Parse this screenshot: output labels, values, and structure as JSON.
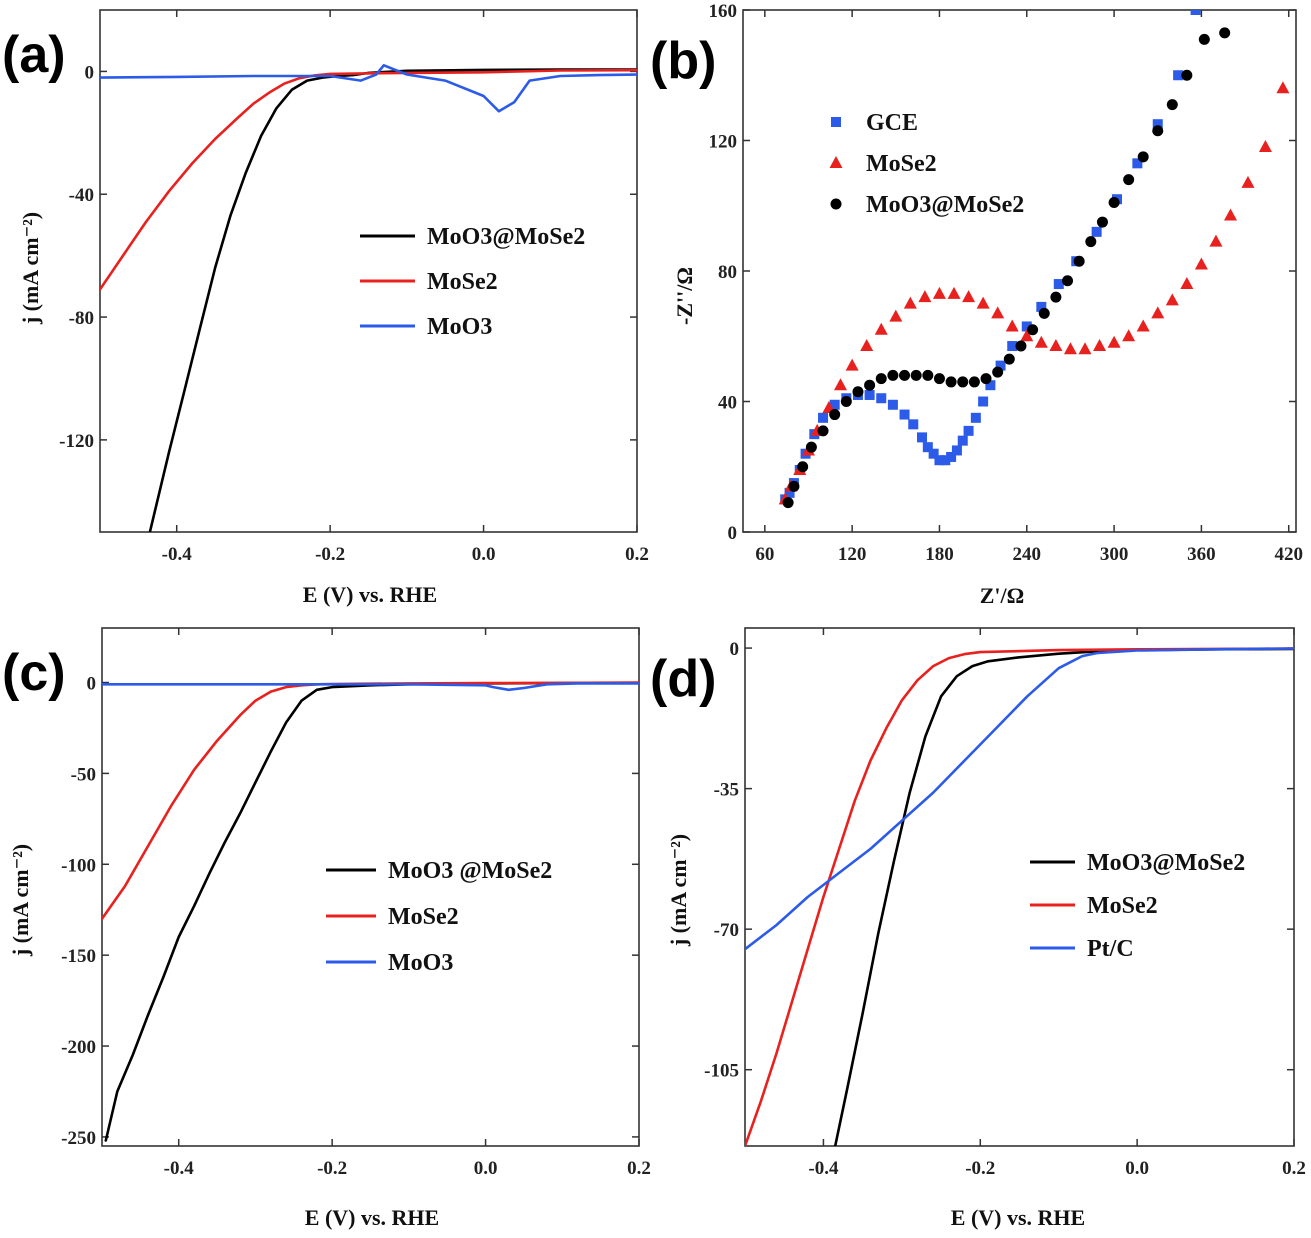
{
  "chart_data": [
    {
      "panel": "(a)",
      "type": "line",
      "xlabel": "E (V) vs. RHE",
      "ylabel": "j (mA cm⁻²)",
      "xlim": [
        -0.5,
        0.2
      ],
      "ylim": [
        -150,
        20
      ],
      "xticks": [
        -0.4,
        -0.2,
        0.0,
        0.2
      ],
      "xtick_labels": [
        "-0.4",
        "-0.2",
        "0.0",
        "0.2"
      ],
      "yticks": [
        0,
        -40,
        -80,
        -120
      ],
      "ytick_labels": [
        "0",
        "-40",
        "-80",
        "-120"
      ],
      "legend_position": "center-right",
      "series": [
        {
          "name": "MoO3@MoSe2",
          "color": "#000000",
          "x": [
            -0.435,
            -0.41,
            -0.39,
            -0.37,
            -0.35,
            -0.33,
            -0.31,
            -0.29,
            -0.27,
            -0.25,
            -0.23,
            -0.21,
            -0.19,
            -0.17,
            -0.15,
            -0.1,
            0.0,
            0.1,
            0.2
          ],
          "y": [
            -150,
            -124,
            -104,
            -84,
            -64,
            -47,
            -33,
            -21,
            -12,
            -6,
            -3,
            -2,
            -1.5,
            -1.2,
            -0.5,
            0.2,
            0.5,
            0.6,
            0.6
          ]
        },
        {
          "name": "MoSe2",
          "color": "#e8211e",
          "x": [
            -0.5,
            -0.47,
            -0.44,
            -0.41,
            -0.38,
            -0.35,
            -0.32,
            -0.3,
            -0.28,
            -0.26,
            -0.24,
            -0.22,
            -0.2,
            -0.1,
            0.0,
            0.1,
            0.2
          ],
          "y": [
            -71,
            -60,
            -49,
            -39,
            -30,
            -22,
            -15,
            -10.5,
            -7,
            -4,
            -2.2,
            -1.3,
            -0.8,
            -0.5,
            -0.3,
            0.3,
            0.4
          ]
        },
        {
          "name": "MoO3",
          "color": "#2b5be8",
          "x": [
            -0.5,
            -0.4,
            -0.3,
            -0.2,
            -0.16,
            -0.14,
            -0.13,
            -0.1,
            -0.05,
            0.0,
            0.02,
            0.04,
            0.06,
            0.1,
            0.15,
            0.2
          ],
          "y": [
            -2,
            -1.8,
            -1.5,
            -1.5,
            -3,
            -1,
            2,
            -1,
            -3,
            -8,
            -13,
            -10,
            -3,
            -1.5,
            -1.2,
            -1
          ]
        }
      ]
    },
    {
      "panel": "(b)",
      "type": "scatter",
      "xlabel": "Z'/Ω",
      "ylabel": "-Z''/Ω",
      "xlim": [
        45,
        425
      ],
      "ylim": [
        0,
        160
      ],
      "xticks": [
        60,
        120,
        180,
        240,
        300,
        360,
        420
      ],
      "xtick_labels": [
        "60",
        "120",
        "180",
        "240",
        "300",
        "360",
        "420"
      ],
      "yticks": [
        0,
        40,
        80,
        120,
        160
      ],
      "ytick_labels": [
        "0",
        "40",
        "80",
        "120",
        "160"
      ],
      "legend_position": "top-left",
      "series": [
        {
          "name": "GCE",
          "color": "#2b5be8",
          "marker": "square",
          "x": [
            74,
            77,
            80,
            84,
            88,
            94,
            100,
            108,
            116,
            124,
            132,
            140,
            148,
            156,
            162,
            168,
            172,
            176,
            180,
            184,
            188,
            192,
            196,
            200,
            205,
            210,
            215,
            222,
            230,
            240,
            250,
            262,
            274,
            288,
            302,
            316,
            330,
            344,
            356
          ],
          "x_note": "",
          "y": [
            10,
            12,
            15,
            19,
            24,
            30,
            35,
            39,
            41,
            42,
            42,
            41,
            39,
            36,
            33,
            29,
            26,
            24,
            22,
            22,
            23,
            25,
            28,
            31,
            35,
            40,
            45,
            51,
            57,
            63,
            69,
            76,
            83,
            92,
            102,
            113,
            125,
            140,
            160
          ]
        },
        {
          "name": "MoSe2",
          "color": "#e8211e",
          "marker": "triangle",
          "x": [
            74,
            78,
            84,
            90,
            96,
            104,
            112,
            120,
            130,
            140,
            150,
            160,
            170,
            180,
            190,
            200,
            210,
            220,
            230,
            240,
            250,
            260,
            270,
            280,
            290,
            300,
            310,
            320,
            330,
            340,
            350,
            360,
            370,
            380,
            392,
            404,
            416
          ],
          "y": [
            10,
            14,
            19,
            25,
            31,
            38,
            45,
            51,
            57,
            62,
            66,
            70,
            72,
            73,
            73,
            72,
            70,
            67,
            63,
            60,
            58,
            57,
            56,
            56,
            57,
            58,
            60,
            63,
            67,
            71,
            76,
            82,
            89,
            97,
            107,
            118,
            136
          ]
        },
        {
          "name": "MoO3@MoSe2",
          "color": "#000000",
          "marker": "circle",
          "x": [
            76,
            80,
            86,
            92,
            100,
            108,
            116,
            124,
            132,
            140,
            148,
            156,
            164,
            172,
            180,
            188,
            196,
            204,
            212,
            220,
            228,
            236,
            244,
            252,
            260,
            268,
            276,
            284,
            292,
            300,
            310,
            320,
            330,
            340,
            350,
            362,
            376
          ],
          "y": [
            9,
            14,
            20,
            26,
            31,
            36,
            40,
            43,
            45,
            47,
            48,
            48,
            48,
            48,
            47,
            46,
            46,
            46,
            47,
            49,
            53,
            57,
            62,
            67,
            72,
            77,
            83,
            89,
            95,
            101,
            108,
            115,
            123,
            131,
            140,
            151,
            153
          ]
        }
      ]
    },
    {
      "panel": "(c)",
      "type": "line",
      "xlabel": "E (V) vs. RHE",
      "ylabel": "j (mA cm⁻²)",
      "xlim": [
        -0.5,
        0.2
      ],
      "ylim": [
        -255,
        30
      ],
      "xticks": [
        -0.4,
        -0.2,
        0.0,
        0.2
      ],
      "xtick_labels": [
        "-0.4",
        "-0.2",
        "0.0",
        "0.2"
      ],
      "yticks": [
        0,
        -50,
        -100,
        -150,
        -200,
        -250
      ],
      "ytick_labels": [
        "0",
        "-50",
        "-100",
        "-150",
        "-200",
        "-250"
      ],
      "legend_position": "center-right",
      "series": [
        {
          "name": "MoO3 @MoSe2",
          "color": "#000000",
          "x": [
            -0.495,
            -0.48,
            -0.46,
            -0.44,
            -0.42,
            -0.4,
            -0.38,
            -0.36,
            -0.34,
            -0.32,
            -0.3,
            -0.28,
            -0.26,
            -0.24,
            -0.22,
            -0.2,
            -0.15,
            -0.1,
            0.0,
            0.1,
            0.2
          ],
          "y": [
            -252,
            -225,
            -205,
            -183,
            -162,
            -140,
            -123,
            -105,
            -88,
            -72,
            -55,
            -38,
            -22,
            -10,
            -4,
            -2.5,
            -1.5,
            -1,
            -0.5,
            -0.3,
            -0.2
          ]
        },
        {
          "name": "MoSe2",
          "color": "#e8211e",
          "x": [
            -0.5,
            -0.47,
            -0.44,
            -0.41,
            -0.38,
            -0.35,
            -0.32,
            -0.3,
            -0.28,
            -0.26,
            -0.24,
            -0.22,
            -0.2,
            -0.1,
            0.0,
            0.1,
            0.2
          ],
          "y": [
            -130,
            -112,
            -90,
            -68,
            -48,
            -32,
            -18,
            -10,
            -5,
            -2.5,
            -1.5,
            -1,
            -0.8,
            -0.5,
            -0.3,
            -0.2,
            0
          ]
        },
        {
          "name": "MoO3",
          "color": "#2b5be8",
          "x": [
            -0.5,
            -0.3,
            -0.1,
            0.0,
            0.01,
            0.03,
            0.05,
            0.08,
            0.12,
            0.2
          ],
          "y": [
            -1,
            -1,
            -1,
            -1.5,
            -2.5,
            -4,
            -3,
            -1,
            -0.5,
            -0.5
          ]
        }
      ]
    },
    {
      "panel": "(d)",
      "type": "line",
      "xlabel": "E (V) vs. RHE",
      "ylabel": "j (mA cm⁻²)",
      "xlim": [
        -0.5,
        0.2
      ],
      "ylim": [
        -124,
        5
      ],
      "xticks": [
        -0.4,
        -0.2,
        0.0,
        0.2
      ],
      "xtick_labels": [
        "-0.4",
        "-0.2",
        "0.0",
        "0.2"
      ],
      "yticks": [
        0,
        -35,
        -70,
        -105
      ],
      "ytick_labels": [
        "0",
        "-35",
        "-70",
        "-105"
      ],
      "legend_position": "center-right",
      "series": [
        {
          "name": "MoO3@MoSe2",
          "color": "#000000",
          "x": [
            -0.385,
            -0.37,
            -0.35,
            -0.33,
            -0.31,
            -0.29,
            -0.27,
            -0.25,
            -0.23,
            -0.21,
            -0.19,
            -0.15,
            -0.1,
            -0.05,
            0.0,
            0.1,
            0.2
          ],
          "y": [
            -124,
            -110,
            -91,
            -71,
            -53,
            -36,
            -22,
            -12,
            -7,
            -4.5,
            -3.3,
            -2.3,
            -1.4,
            -0.8,
            -0.5,
            -0.3,
            -0.2
          ]
        },
        {
          "name": "MoSe2",
          "color": "#e8211e",
          "x": [
            -0.5,
            -0.48,
            -0.46,
            -0.44,
            -0.42,
            -0.4,
            -0.38,
            -0.36,
            -0.34,
            -0.32,
            -0.3,
            -0.28,
            -0.26,
            -0.24,
            -0.22,
            -0.2,
            -0.1,
            0.0,
            0.1,
            0.2
          ],
          "y": [
            -124,
            -113,
            -101,
            -88,
            -75,
            -62,
            -50,
            -38,
            -28,
            -20,
            -13,
            -8,
            -4.5,
            -2.5,
            -1.5,
            -1,
            -0.5,
            -0.3,
            -0.2,
            -0.1
          ]
        },
        {
          "name": "Pt/C",
          "color": "#2b5be8",
          "x": [
            -0.5,
            -0.46,
            -0.42,
            -0.38,
            -0.34,
            -0.3,
            -0.26,
            -0.22,
            -0.18,
            -0.14,
            -0.1,
            -0.07,
            -0.05,
            0.0,
            0.1,
            0.2
          ],
          "y": [
            -75,
            -69,
            -62,
            -56,
            -50,
            -43,
            -36,
            -28,
            -20,
            -12,
            -5,
            -2,
            -1.2,
            -0.6,
            -0.3,
            -0.1
          ]
        }
      ]
    }
  ],
  "panels": {
    "a": {
      "label": "(a)",
      "xlabel": "E (V) vs. RHE",
      "ylabel": "j (mA cm⁻²)",
      "legend": [
        "MoO3@MoSe2",
        "MoSe2",
        "MoO3"
      ]
    },
    "b": {
      "label": "(b)",
      "xlabel": "Z'/Ω",
      "ylabel": "-Z''/Ω",
      "legend": [
        "GCE",
        "MoSe2",
        "MoO3@MoSe2"
      ]
    },
    "c": {
      "label": "(c)",
      "xlabel": "E (V) vs. RHE",
      "ylabel": "j (mA cm⁻²)",
      "legend": [
        "MoO3 @MoSe2",
        "MoSe2",
        "MoO3"
      ]
    },
    "d": {
      "label": "(d)",
      "xlabel": "E (V) vs. RHE",
      "ylabel": "j (mA cm⁻²)",
      "legend": [
        "MoO3@MoSe2",
        "MoSe2",
        "Pt/C"
      ]
    }
  }
}
